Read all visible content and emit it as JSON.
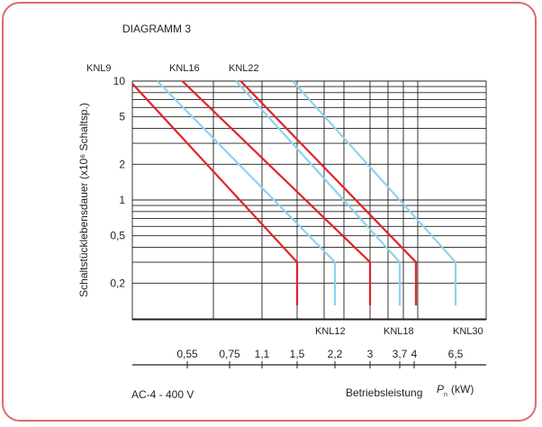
{
  "chart_data": {
    "type": "line",
    "title": "DIAGRAMM 3",
    "subtitle": "AC-4 - 400 V",
    "ylabel": "Schaltstücklebensdauer (x10⁶ Schaltsp.)",
    "xlabel": "Betriebsleistung",
    "xlabel_symbol": "P",
    "xlabel_subscript": "n",
    "xlabel_unit": "(kW)",
    "y_scale": "log",
    "ylim": [
      0.13,
      10
    ],
    "y_ticks": [
      {
        "value": 10,
        "label": "10"
      },
      {
        "value": 5,
        "label": "5"
      },
      {
        "value": 2,
        "label": "2"
      },
      {
        "value": 1,
        "label": "1"
      },
      {
        "value": 0.5,
        "label": "0,5"
      },
      {
        "value": 0.2,
        "label": "0,2"
      }
    ],
    "x_ticks": [
      {
        "value": 0.55,
        "label": "0,55"
      },
      {
        "value": 0.75,
        "label": "0,75"
      },
      {
        "value": 1.1,
        "label": "1,1"
      },
      {
        "value": 1.5,
        "label": "1,5"
      },
      {
        "value": 2.2,
        "label": "2,2"
      },
      {
        "value": 3,
        "label": "3"
      },
      {
        "value": 3.7,
        "label": "3,7"
      },
      {
        "value": 4,
        "label": "4"
      },
      {
        "value": 6.5,
        "label": "6,5"
      }
    ],
    "series": [
      {
        "name": "KNL9",
        "color": "#e3202a",
        "points": [
          [
            0.0,
            9.5
          ],
          [
            1.5,
            0.3
          ],
          [
            1.5,
            0.13
          ]
        ]
      },
      {
        "name": "KNL12",
        "color": "#8fd3ea",
        "points": [
          [
            0.25,
            10
          ],
          [
            2.2,
            0.3
          ],
          [
            2.2,
            0.13
          ]
        ]
      },
      {
        "name": "KNL16",
        "color": "#e3202a",
        "points": [
          [
            0.5,
            10
          ],
          [
            3.0,
            0.3
          ],
          [
            3.0,
            0.13
          ]
        ]
      },
      {
        "name": "KNL22",
        "color": "#e3202a",
        "points": [
          [
            0.87,
            10
          ],
          [
            4.3,
            0.3
          ],
          [
            4.3,
            0.13
          ]
        ]
      },
      {
        "name": "KNL18",
        "color": "#8fd3ea",
        "points": [
          [
            0.82,
            10
          ],
          [
            3.7,
            0.3
          ],
          [
            3.7,
            0.13
          ]
        ]
      },
      {
        "name": "KNL30",
        "color": "#8fd3ea",
        "points": [
          [
            1.45,
            10
          ],
          [
            6.5,
            0.3
          ],
          [
            6.5,
            0.13
          ]
        ]
      }
    ],
    "series_labels": [
      {
        "text": "KNL9",
        "pos": "top"
      },
      {
        "text": "KNL16",
        "pos": "top"
      },
      {
        "text": "KNL22",
        "pos": "top"
      },
      {
        "text": "KNL12",
        "pos": "bottom"
      },
      {
        "text": "KNL18",
        "pos": "bottom"
      },
      {
        "text": "KNL30",
        "pos": "bottom"
      }
    ],
    "grid": true
  }
}
